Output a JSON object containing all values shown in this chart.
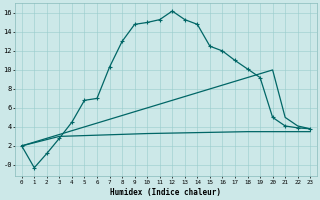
{
  "xlabel": "Humidex (Indice chaleur)",
  "xlim": [
    -0.5,
    23.5
  ],
  "ylim": [
    -1.2,
    17
  ],
  "xticks": [
    0,
    1,
    2,
    3,
    4,
    5,
    6,
    7,
    8,
    9,
    10,
    11,
    12,
    13,
    14,
    15,
    16,
    17,
    18,
    19,
    20,
    21,
    22,
    23
  ],
  "yticks": [
    0,
    2,
    4,
    6,
    8,
    10,
    12,
    14,
    16
  ],
  "ytick_labels": [
    "-0",
    "2",
    "4",
    "6",
    "8",
    "10",
    "12",
    "14",
    "16"
  ],
  "bg_color": "#cce8e8",
  "line_color": "#006666",
  "curve": {
    "x": [
      0,
      1,
      2,
      3,
      4,
      5,
      6,
      7,
      8,
      9,
      10,
      11,
      12,
      13,
      14,
      15,
      16,
      17,
      18,
      19,
      20,
      21,
      22,
      23
    ],
    "y": [
      2.0,
      -0.3,
      1.2,
      2.8,
      4.5,
      6.8,
      7.0,
      10.3,
      13.0,
      14.8,
      15.0,
      15.3,
      16.2,
      15.3,
      14.8,
      12.5,
      12.0,
      11.0,
      10.1,
      9.2,
      5.0,
      4.1,
      3.9,
      3.8
    ]
  },
  "diag_line": {
    "x": [
      0,
      20,
      21,
      22,
      23
    ],
    "y": [
      2.0,
      10.0,
      5.0,
      4.1,
      3.8
    ]
  },
  "flat_line": {
    "x": [
      0,
      3,
      10,
      18,
      19,
      20,
      21,
      22,
      23
    ],
    "y": [
      2.0,
      3.0,
      3.3,
      3.5,
      3.5,
      3.5,
      3.5,
      3.5,
      3.5
    ]
  }
}
